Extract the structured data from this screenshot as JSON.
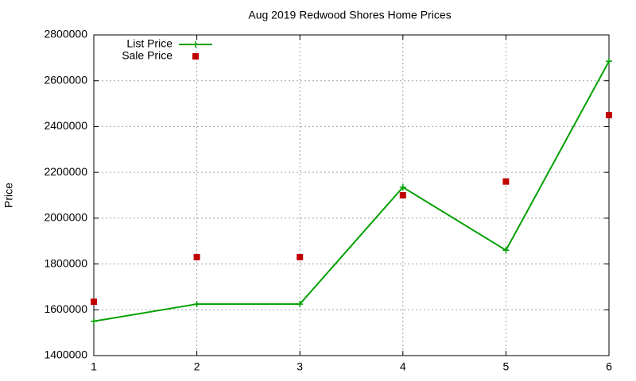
{
  "chart_data": {
    "type": "line",
    "title": "Aug 2019 Redwood Shores Home Prices",
    "y_label": "Price",
    "x": [
      1,
      2,
      3,
      4,
      5,
      6
    ],
    "series": [
      {
        "name": "List Price",
        "color": "#00a000",
        "line": true,
        "marker": "plus",
        "values": [
          1550000,
          1625000,
          1625000,
          2135000,
          1860000,
          2685000
        ]
      },
      {
        "name": "Sale Price",
        "color": "#c00000",
        "line": false,
        "marker": "square",
        "values": [
          1635000,
          1830000,
          1830000,
          2100000,
          2160000,
          2450000
        ]
      }
    ],
    "xlim": [
      1,
      6
    ],
    "xticks": [
      1,
      2,
      3,
      4,
      5,
      6
    ],
    "ylim": [
      1400000,
      2800000
    ],
    "yticks": [
      1400000,
      1600000,
      1800000,
      2000000,
      2200000,
      2400000,
      2600000,
      2800000
    ],
    "grid": true,
    "legend": "top-left"
  }
}
